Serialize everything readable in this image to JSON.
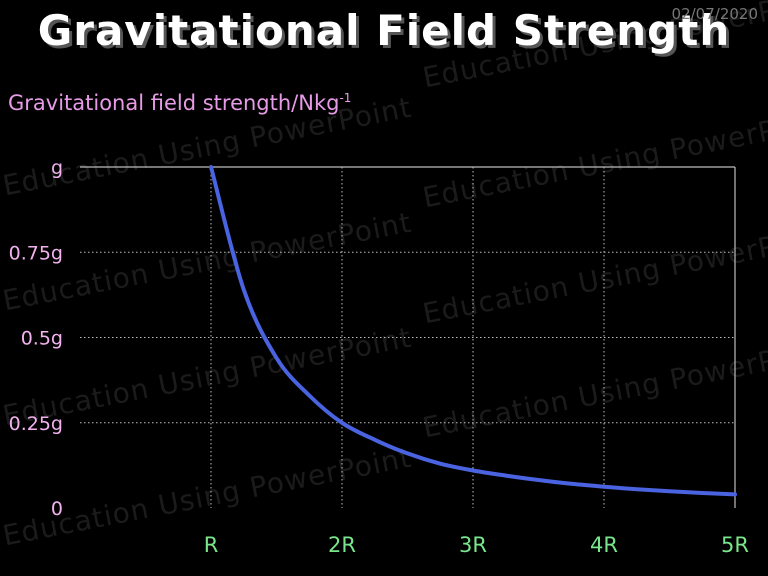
{
  "slide": {
    "title": "Gravitational Field Strength",
    "date": "02/07/2020",
    "watermark": "Education Using PowerPoint"
  },
  "colors": {
    "background": "#000000",
    "title": "#ffffff",
    "y_axis_label": "#e79be6",
    "y_tick_labels": "#f2b2ee",
    "x_tick_labels": "#79e68b",
    "curve": "#4a63e0",
    "grid": "#bdbdbd"
  },
  "chart_data": {
    "type": "line",
    "title": "Gravitational Field Strength",
    "ylabel": "Gravitational field strength/Nkg",
    "ylabel_superscript": "-1",
    "xlabel": "",
    "x_ticks": [
      "R",
      "2R",
      "3R",
      "4R",
      "5R"
    ],
    "y_ticks": [
      "0",
      "0.25g",
      "0.5g",
      "0.75g",
      "g"
    ],
    "xlim": [
      0,
      5
    ],
    "ylim": [
      0,
      1
    ],
    "grid": true,
    "series": [
      {
        "values_note_units": "x in multiples of R, y in multiples of g",
        "x": [
          1,
          1.25,
          1.5,
          1.75,
          2,
          2.25,
          2.5,
          2.75,
          3,
          3.25,
          3.5,
          3.75,
          4,
          4.25,
          4.5,
          4.75,
          5
        ],
        "y": [
          1,
          0.64,
          0.44,
          0.33,
          0.25,
          0.2,
          0.16,
          0.13,
          0.11,
          0.095,
          0.082,
          0.071,
          0.0625,
          0.055,
          0.049,
          0.044,
          0.04
        ]
      }
    ]
  }
}
